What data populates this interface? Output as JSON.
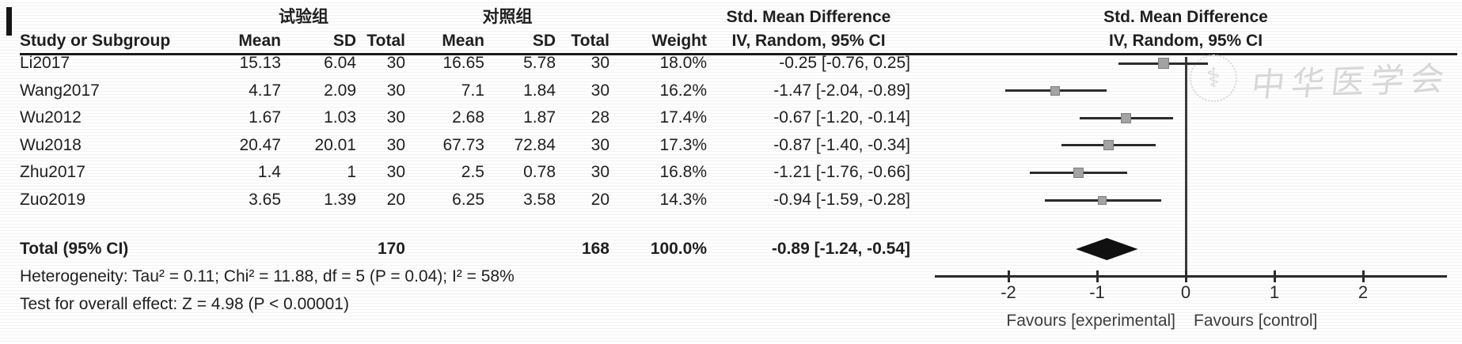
{
  "header": {
    "group1": "试验组",
    "group2": "对照组",
    "smd_col_title": "Std. Mean Difference",
    "smd_col_sub": "IV, Random, 95% CI",
    "smd_plot_title": "Std. Mean Difference",
    "smd_plot_sub": "IV, Random, 95% CI",
    "columns": [
      "Study or Subgroup",
      "Mean",
      "SD",
      "Total",
      "Mean",
      "SD",
      "Total",
      "Weight",
      "IV, Random, 95% CI"
    ]
  },
  "chart_data": {
    "type": "forest",
    "effect_measure": "Std. Mean Difference (IV, Random, 95% CI)",
    "studies": [
      {
        "label": "Li2017",
        "mean1": "15.13",
        "sd1": "6.04",
        "total1": "30",
        "mean2": "16.65",
        "sd2": "5.78",
        "total2": "30",
        "weight": "18.0%",
        "ci_text": "-0.25 [-0.76, 0.25]",
        "est": -0.25,
        "lo": -0.76,
        "hi": 0.25,
        "weight_pct": 18.0
      },
      {
        "label": "Wang2017",
        "mean1": "4.17",
        "sd1": "2.09",
        "total1": "30",
        "mean2": "7.1",
        "sd2": "1.84",
        "total2": "30",
        "weight": "16.2%",
        "ci_text": "-1.47 [-2.04, -0.89]",
        "est": -1.47,
        "lo": -2.04,
        "hi": -0.89,
        "weight_pct": 16.2
      },
      {
        "label": "Wu2012",
        "mean1": "1.67",
        "sd1": "1.03",
        "total1": "30",
        "mean2": "2.68",
        "sd2": "1.87",
        "total2": "28",
        "weight": "17.4%",
        "ci_text": "-0.67 [-1.20, -0.14]",
        "est": -0.67,
        "lo": -1.2,
        "hi": -0.14,
        "weight_pct": 17.4
      },
      {
        "label": "Wu2018",
        "mean1": "20.47",
        "sd1": "20.01",
        "total1": "30",
        "mean2": "67.73",
        "sd2": "72.84",
        "total2": "30",
        "weight": "17.3%",
        "ci_text": "-0.87 [-1.40, -0.34]",
        "est": -0.87,
        "lo": -1.4,
        "hi": -0.34,
        "weight_pct": 17.3
      },
      {
        "label": "Zhu2017",
        "mean1": "1.4",
        "sd1": "1",
        "total1": "30",
        "mean2": "2.5",
        "sd2": "0.78",
        "total2": "30",
        "weight": "16.8%",
        "ci_text": "-1.21 [-1.76, -0.66]",
        "est": -1.21,
        "lo": -1.76,
        "hi": -0.66,
        "weight_pct": 16.8
      },
      {
        "label": "Zuo2019",
        "mean1": "3.65",
        "sd1": "1.39",
        "total1": "20",
        "mean2": "6.25",
        "sd2": "3.58",
        "total2": "20",
        "weight": "14.3%",
        "ci_text": "-0.94 [-1.59, -0.28]",
        "est": -0.94,
        "lo": -1.59,
        "hi": -0.28,
        "weight_pct": 14.3
      }
    ],
    "total": {
      "label": "Total (95% CI)",
      "total1": "170",
      "total2": "168",
      "weight": "100.0%",
      "ci_text": "-0.89 [-1.24, -0.54]",
      "est": -0.89,
      "lo": -1.24,
      "hi": -0.54
    },
    "heterogeneity": "Heterogeneity: Tau² = 0.11; Chi² = 11.88, df = 5 (P = 0.04); I² = 58%",
    "overall_effect": "Test for overall effect: Z = 4.98 (P < 0.00001)",
    "x_ticks": [
      -2,
      -1,
      0,
      1,
      2
    ],
    "x_min": -2.83,
    "x_max": 2.95,
    "grid": false,
    "favours_left": "Favours [experimental]",
    "favours_right": "Favours [control]"
  },
  "watermark": {
    "text": "中华医学会",
    "seal_symbol": "⚕"
  },
  "colors": {
    "text": "#1f1f1f",
    "line": "#2c2c2c",
    "square": "#a3a3a3",
    "square_border": "#7f7f7f",
    "diamond": "#101010",
    "watermark": "#d7d7d7",
    "rule": "#1a1a1a"
  }
}
